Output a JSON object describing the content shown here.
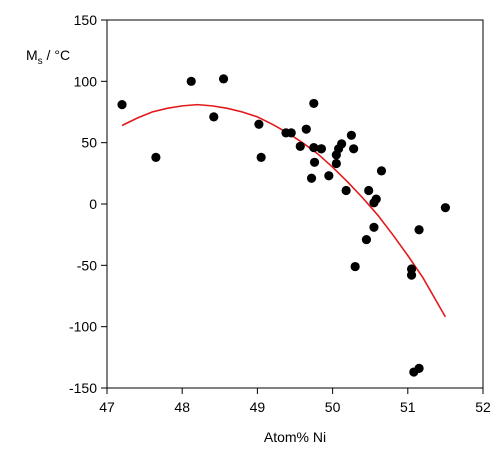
{
  "chart_data": {
    "type": "scatter",
    "title": "",
    "xlabel": "Atom% Ni",
    "ylabel": "Ms / °C",
    "ylabel_main": "M",
    "ylabel_sub": "s",
    "ylabel_rest": " / °C",
    "xlim": [
      47,
      52
    ],
    "ylim": [
      -150,
      150
    ],
    "xticks": [
      47,
      48,
      49,
      50,
      51,
      52
    ],
    "yticks": [
      -150,
      -100,
      -50,
      0,
      50,
      100,
      150
    ],
    "grid": false,
    "colors": {
      "points": "#000000",
      "fit_line": "#e31a1c",
      "axes": "#000000"
    },
    "series": [
      {
        "type": "scatter",
        "x": [
          47.2,
          47.65,
          48.12,
          48.42,
          48.55,
          49.02,
          49.05,
          49.38,
          49.45,
          49.57,
          49.65,
          49.72,
          49.75,
          49.75,
          49.76,
          49.85,
          49.85,
          49.95,
          50.05,
          50.05,
          50.08,
          50.12,
          50.18,
          50.25,
          50.28,
          50.3,
          50.45,
          50.48,
          50.55,
          50.55,
          50.58,
          50.65,
          51.05,
          51.05,
          51.08,
          51.15,
          51.15,
          51.5
        ],
        "y": [
          81,
          38,
          100,
          71,
          102,
          65,
          38,
          58,
          58,
          47,
          61,
          21,
          82,
          46,
          34,
          45,
          45,
          23,
          33,
          40,
          45,
          49,
          11,
          56,
          45,
          -51,
          -29,
          11,
          -19,
          1,
          4,
          27,
          -53,
          -58,
          -137,
          -21,
          -134,
          -3
        ]
      },
      {
        "type": "line",
        "fit": "quadratic",
        "x": [
          47.2,
          47.4,
          47.6,
          47.8,
          48.0,
          48.2,
          48.4,
          48.6,
          48.8,
          49.0,
          49.2,
          49.4,
          49.6,
          49.8,
          50.0,
          50.2,
          50.4,
          50.6,
          50.8,
          51.0,
          51.2,
          51.5
        ],
        "y": [
          64,
          70,
          75,
          78,
          80,
          81,
          80,
          78,
          75,
          71,
          65,
          58,
          50,
          41,
          30,
          18,
          5,
          -9,
          -25,
          -42,
          -60,
          -92
        ]
      }
    ]
  }
}
